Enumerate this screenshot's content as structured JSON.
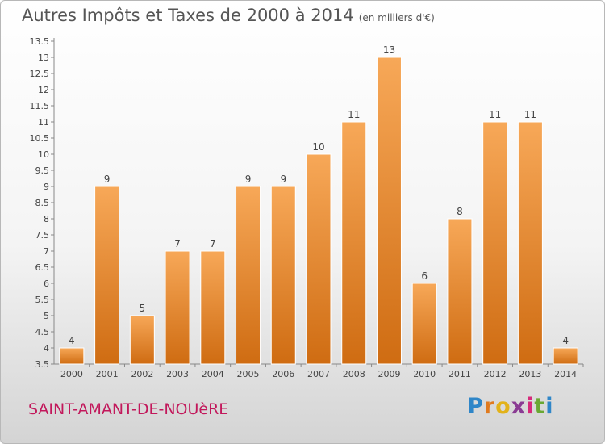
{
  "title": "Autres Impôts et Taxes de 2000 à 2014",
  "unit_note": "(en milliers d'€)",
  "commune": "SAINT-AMANT-DE-NOUèRE",
  "logo": {
    "text": "Proxiti",
    "letters": [
      {
        "ch": "P",
        "color": "#2f86c8"
      },
      {
        "ch": "r",
        "color": "#e07a1e"
      },
      {
        "ch": "o",
        "color": "#e2b21a"
      },
      {
        "ch": "x",
        "color": "#8a3b93"
      },
      {
        "ch": "i",
        "color": "#d62a7a"
      },
      {
        "ch": "t",
        "color": "#6aa832"
      },
      {
        "ch": "i",
        "color": "#2f86c8"
      }
    ]
  },
  "colors": {
    "bar_top": "#f7a858",
    "bar_bottom": "#cf6c12",
    "axis": "#888888",
    "grid": "#dddddd",
    "text": "#444444"
  },
  "chart_data": {
    "type": "bar",
    "categories": [
      "2000",
      "2001",
      "2002",
      "2003",
      "2004",
      "2005",
      "2006",
      "2007",
      "2008",
      "2009",
      "2010",
      "2011",
      "2012",
      "2013",
      "2014"
    ],
    "values": [
      4,
      9,
      5,
      7,
      7,
      9,
      9,
      10,
      11,
      13,
      6,
      8,
      11,
      11,
      4
    ],
    "value_labels": [
      "4",
      "9",
      "5",
      "7",
      "7",
      "9",
      "9",
      "10",
      "11",
      "13",
      "6",
      "8",
      "11",
      "11",
      "4"
    ],
    "ylim": [
      3.5,
      13.5
    ],
    "yticks": [
      3.5,
      4,
      4.5,
      5,
      5.5,
      6,
      6.5,
      7,
      7.5,
      8,
      8.5,
      9,
      9.5,
      10,
      10.5,
      11,
      11.5,
      12,
      12.5,
      13,
      13.5
    ],
    "ytick_labels": [
      "3.5",
      "4",
      "4.5",
      "5",
      "5.5",
      "6",
      "6.5",
      "7",
      "7.5",
      "8",
      "8.5",
      "9",
      "9.5",
      "10",
      "10.5",
      "11",
      "11.5",
      "12",
      "12.5",
      "13",
      "13.5"
    ],
    "grid": false
  }
}
